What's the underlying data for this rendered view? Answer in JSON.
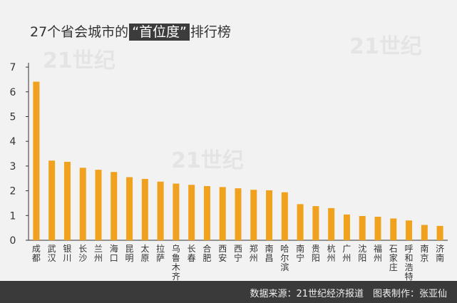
{
  "title": {
    "prefix": "27个省会城市的",
    "highlight": "“首位度”",
    "suffix": "排行榜"
  },
  "footer": "数据来源：21世纪经济报道　图表制作：张亚仙",
  "watermark": "21世纪",
  "colors": {
    "bar": "#f0a11e",
    "axis": "#333333",
    "text": "#333333"
  },
  "chart_data": {
    "type": "bar",
    "title": "27个省会城市的“首位度”排行榜",
    "categories": [
      "成都",
      "武汉",
      "银川",
      "长沙",
      "兰州",
      "海口",
      "昆明",
      "太原",
      "拉萨",
      "乌鲁木齐",
      "长春",
      "合肥",
      "西安",
      "西宁",
      "郑州",
      "南昌",
      "哈尔滨",
      "南宁",
      "贵阳",
      "杭州",
      "广州",
      "沈阳",
      "福州",
      "石家庄",
      "呼和浩特",
      "南京",
      "济南"
    ],
    "values": [
      6.41,
      3.22,
      3.17,
      2.93,
      2.85,
      2.76,
      2.55,
      2.48,
      2.37,
      2.29,
      2.24,
      2.19,
      2.15,
      2.1,
      2.04,
      2.02,
      1.94,
      1.46,
      1.38,
      1.3,
      1.04,
      0.98,
      0.95,
      0.88,
      0.8,
      0.62,
      0.58
    ],
    "yticks": [
      0,
      1,
      2,
      3,
      4,
      5,
      6,
      7
    ],
    "ylim": [
      0,
      7
    ],
    "xlabel": "",
    "ylabel": "",
    "grid": false,
    "legend": "none"
  }
}
